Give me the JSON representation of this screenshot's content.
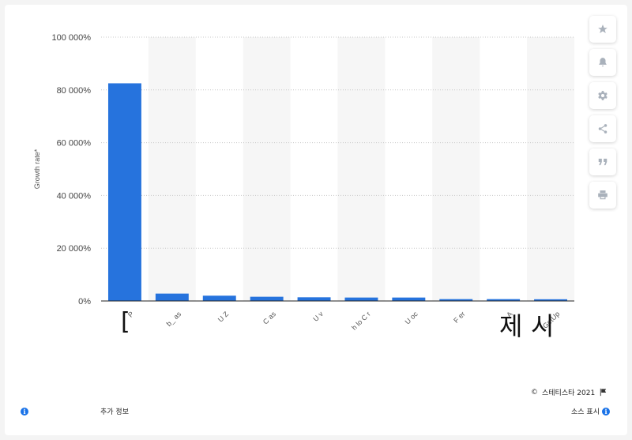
{
  "chart_data": {
    "type": "bar",
    "ylabel": "Growth rate*",
    "ylim": [
      0,
      100000
    ],
    "y_ticks": [
      "0%",
      "20 000%",
      "40 000%",
      "60 000%",
      "80 000%",
      "100 000%"
    ],
    "categories": [
      "P",
      "b_ as",
      "U Z",
      "C as",
      "U v",
      "h lo C r",
      "U oc",
      "F er",
      "A",
      "GetUp"
    ],
    "values": [
      82500,
      2800,
      2000,
      1600,
      1400,
      1300,
      1300,
      700,
      700,
      650
    ],
    "bar_color": "#2673dd",
    "grid": true,
    "alternating_band_color": "#f6f6f6"
  },
  "overlay_glyphs": [
    "[",
    "제",
    "시"
  ],
  "toolbar": {
    "icons": [
      "star-icon",
      "bell-icon",
      "gear-icon",
      "share-icon",
      "quote-icon",
      "print-icon"
    ]
  },
  "footer": {
    "copyright_symbol": "©",
    "credit": "스테티스타 2021",
    "more_info": "추가 정보",
    "source": "소스 표시",
    "info_glyph": "i"
  }
}
